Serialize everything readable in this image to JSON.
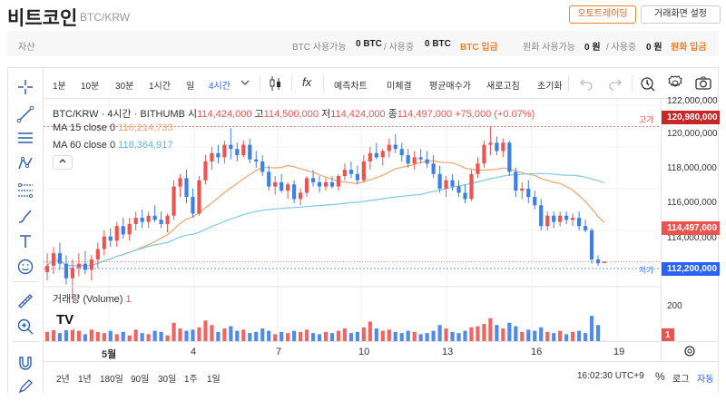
{
  "header": {
    "title": "비트코인",
    "subtitle": "BTC/KRW",
    "auto_trade_btn": "오토트레이딩",
    "screen_settings_btn": "거래화면 설정"
  },
  "assets": {
    "label": "자산",
    "btc_available_label": "BTC 사용가능",
    "btc_available_value": "0 BTC",
    "btc_in_use_label": "/ 사용중",
    "btc_in_use_value": "0 BTC",
    "btc_deposit": "BTC 입금",
    "krw_available_label": "원화 사용가능",
    "krw_available_value": "0 원",
    "krw_in_use_label": "/ 사용중",
    "krw_in_use_value": "0 원",
    "krw_deposit": "원화 입금"
  },
  "toolbar": {
    "intervals": [
      "1분",
      "10분",
      "30분",
      "1시간",
      "일",
      "4시간"
    ],
    "active_interval": "4시간",
    "indicator_icon": "fx",
    "forecast": "예측차트",
    "unfilled": "미체결",
    "avg_price": "평균매수가",
    "refresh": "새로고침",
    "reset": "초기화"
  },
  "chart_info": {
    "symbol": "BTC/KRW · 4시간 · BITHUMB",
    "open_label": "시",
    "open": "114,424,000",
    "high_label": "고",
    "high": "114,500,000",
    "low_label": "저",
    "low": "114,424,000",
    "close_label": "종",
    "close": "114,497,000",
    "change": "+75,000 (+0.07%)",
    "ma15_label": "MA 15 close 0",
    "ma15_value": "116,214,733",
    "ma60_label": "MA 60 close 0",
    "ma60_value": "118,364,917",
    "volume_label": "거래량 (Volume)",
    "volume_value": "1",
    "high_marker": "고가",
    "low_marker": "저가",
    "collapse_icon": "chevron-up-icon",
    "logo_text": "TV"
  },
  "price_axis": {
    "ticks": [
      "122,000,000",
      "120,000,000",
      "118,000,000",
      "116,000,000",
      "114,000,000"
    ],
    "high_tag": "120,980,000",
    "current_tag": "114,497,000",
    "low_tag": "112,200,000",
    "vol_tick": "200",
    "vol_tag": "1"
  },
  "time_axis": {
    "ticks": [
      "5월",
      "4",
      "7",
      "10",
      "13",
      "16",
      "19"
    ]
  },
  "bottom": {
    "ranges": [
      "2년",
      "1년",
      "180일",
      "90일",
      "30일",
      "1주",
      "1일"
    ],
    "clock": "16:02:30 UTC+9",
    "percent": "%",
    "log": "로그",
    "auto": "자동"
  },
  "colors": {
    "up": "#ef5350",
    "down": "#3d7ee8",
    "ma15": "#f7a26a",
    "ma60": "#7fc9e8",
    "accent_orange": "#f0832f",
    "active_blue": "#2962ff"
  },
  "chart_data": {
    "type": "candlestick",
    "interval": "4시간",
    "y_unit": "KRW",
    "ylim": [
      113600000,
      122300000
    ],
    "period_high": 120980000,
    "period_low": 112200000,
    "last_close": 114497000,
    "ohlc": [
      [
        114.0,
        114.9,
        113.6,
        114.3
      ],
      [
        114.3,
        115.2,
        113.9,
        114.9
      ],
      [
        114.9,
        115.4,
        114.1,
        114.4
      ],
      [
        114.4,
        114.8,
        113.4,
        113.7
      ],
      [
        113.7,
        114.6,
        112.7,
        114.2
      ],
      [
        114.2,
        114.9,
        113.8,
        114.4
      ],
      [
        114.4,
        115.0,
        113.9,
        114.1
      ],
      [
        114.1,
        114.8,
        113.6,
        114.6
      ],
      [
        114.6,
        115.4,
        114.2,
        115.1
      ],
      [
        115.1,
        116.0,
        114.8,
        115.7
      ],
      [
        115.7,
        116.1,
        115.2,
        115.5
      ],
      [
        115.5,
        116.4,
        115.2,
        116.2
      ],
      [
        116.2,
        116.6,
        115.6,
        115.8
      ],
      [
        115.8,
        116.6,
        115.5,
        116.3
      ],
      [
        116.3,
        116.9,
        116.0,
        116.6
      ],
      [
        116.6,
        117.0,
        116.1,
        116.4
      ],
      [
        116.4,
        116.9,
        116.1,
        116.7
      ],
      [
        116.7,
        117.2,
        116.4,
        116.5
      ],
      [
        116.5,
        116.9,
        116.1,
        116.3
      ],
      [
        116.3,
        116.8,
        115.9,
        116.7
      ],
      [
        116.7,
        118.4,
        116.5,
        118.1
      ],
      [
        118.1,
        118.7,
        117.6,
        118.5
      ],
      [
        118.5,
        118.9,
        117.3,
        117.6
      ],
      [
        117.6,
        118.0,
        116.6,
        116.8
      ],
      [
        116.8,
        118.6,
        116.7,
        118.4
      ],
      [
        118.4,
        119.6,
        118.2,
        119.3
      ],
      [
        119.3,
        120.0,
        118.9,
        119.7
      ],
      [
        119.7,
        120.1,
        119.2,
        119.5
      ],
      [
        119.5,
        120.3,
        119.2,
        120.1
      ],
      [
        120.1,
        120.9,
        119.4,
        119.9
      ],
      [
        119.9,
        120.2,
        119.3,
        119.6
      ],
      [
        119.6,
        120.3,
        119.5,
        120.1
      ],
      [
        120.1,
        120.4,
        119.2,
        119.4
      ],
      [
        119.4,
        119.8,
        119.0,
        119.3
      ],
      [
        119.3,
        119.6,
        118.6,
        118.8
      ],
      [
        118.8,
        119.1,
        117.9,
        118.1
      ],
      [
        118.1,
        118.6,
        117.7,
        118.3
      ],
      [
        118.3,
        118.7,
        117.8,
        117.9
      ],
      [
        117.9,
        118.3,
        117.5,
        118.2
      ],
      [
        118.2,
        118.4,
        117.3,
        117.5
      ],
      [
        117.5,
        118.0,
        117.2,
        117.8
      ],
      [
        117.8,
        118.6,
        117.6,
        118.5
      ],
      [
        118.5,
        118.9,
        118.1,
        118.3
      ],
      [
        118.3,
        118.6,
        117.8,
        118.1
      ],
      [
        118.1,
        118.5,
        117.9,
        118.3
      ],
      [
        118.3,
        118.6,
        118.0,
        118.1
      ],
      [
        118.1,
        118.7,
        117.9,
        118.6
      ],
      [
        118.6,
        119.2,
        118.4,
        118.9
      ],
      [
        118.9,
        119.3,
        118.5,
        118.7
      ],
      [
        118.7,
        119.1,
        118.2,
        118.4
      ],
      [
        118.4,
        119.6,
        118.3,
        119.3
      ],
      [
        119.3,
        120.0,
        118.9,
        119.7
      ],
      [
        119.7,
        120.2,
        119.4,
        119.5
      ],
      [
        119.5,
        119.9,
        119.1,
        119.8
      ],
      [
        119.8,
        120.4,
        119.5,
        120.1
      ],
      [
        120.1,
        120.6,
        119.7,
        119.9
      ],
      [
        119.9,
        120.2,
        119.3,
        119.6
      ],
      [
        119.6,
        119.9,
        119.0,
        119.2
      ],
      [
        119.2,
        119.8,
        118.9,
        119.5
      ],
      [
        119.5,
        119.9,
        119.2,
        119.4
      ],
      [
        119.4,
        119.8,
        119.0,
        119.2
      ],
      [
        119.2,
        119.6,
        118.5,
        118.7
      ],
      [
        118.7,
        119.1,
        117.8,
        118.0
      ],
      [
        118.0,
        118.6,
        117.6,
        118.4
      ],
      [
        118.4,
        118.7,
        117.9,
        118.1
      ],
      [
        118.1,
        118.4,
        117.6,
        117.8
      ],
      [
        117.8,
        118.2,
        117.3,
        117.5
      ],
      [
        117.5,
        118.9,
        117.4,
        118.7
      ],
      [
        118.7,
        119.5,
        118.5,
        119.2
      ],
      [
        119.2,
        120.3,
        119.0,
        120.1
      ],
      [
        120.1,
        120.98,
        119.6,
        120.2
      ],
      [
        120.2,
        120.5,
        119.6,
        119.8
      ],
      [
        119.8,
        120.4,
        119.5,
        120.2
      ],
      [
        120.2,
        120.3,
        118.6,
        118.8
      ],
      [
        118.8,
        119.0,
        117.6,
        117.9
      ],
      [
        117.9,
        118.3,
        117.5,
        118.0
      ],
      [
        118.0,
        118.4,
        117.3,
        117.6
      ],
      [
        117.6,
        117.9,
        117.0,
        117.2
      ],
      [
        117.2,
        117.5,
        116.0,
        116.2
      ],
      [
        116.2,
        116.9,
        116.0,
        116.7
      ],
      [
        116.7,
        116.9,
        116.1,
        116.4
      ],
      [
        116.4,
        116.9,
        116.2,
        116.7
      ],
      [
        116.7,
        116.9,
        116.3,
        116.5
      ],
      [
        116.5,
        116.8,
        116.2,
        116.6
      ],
      [
        116.6,
        116.9,
        116.0,
        116.2
      ],
      [
        116.2,
        116.5,
        115.9,
        116.0
      ],
      [
        116.0,
        116.1,
        114.4,
        114.6
      ],
      [
        114.6,
        114.8,
        114.3,
        114.42
      ],
      [
        114.424,
        114.5,
        114.424,
        114.497
      ]
    ],
    "ohlc_unit": "million KRW",
    "volume": [
      40,
      55,
      35,
      60,
      70,
      45,
      30,
      50,
      40,
      35,
      45,
      30,
      40,
      25,
      50,
      35,
      30,
      45,
      40,
      25,
      80,
      55,
      45,
      50,
      60,
      90,
      70,
      40,
      55,
      65,
      45,
      50,
      35,
      40,
      55,
      45,
      30,
      40,
      35,
      45,
      40,
      50,
      35,
      30,
      40,
      35,
      45,
      55,
      35,
      40,
      60,
      85,
      55,
      45,
      50,
      40,
      35,
      45,
      40,
      30,
      35,
      45,
      70,
      55,
      40,
      35,
      45,
      60,
      65,
      75,
      100,
      70,
      55,
      80,
      65,
      40,
      50,
      45,
      60,
      40,
      35,
      45,
      30,
      40,
      45,
      35,
      110,
      70,
      1
    ],
    "volume_ylim": [
      0,
      250
    ]
  }
}
